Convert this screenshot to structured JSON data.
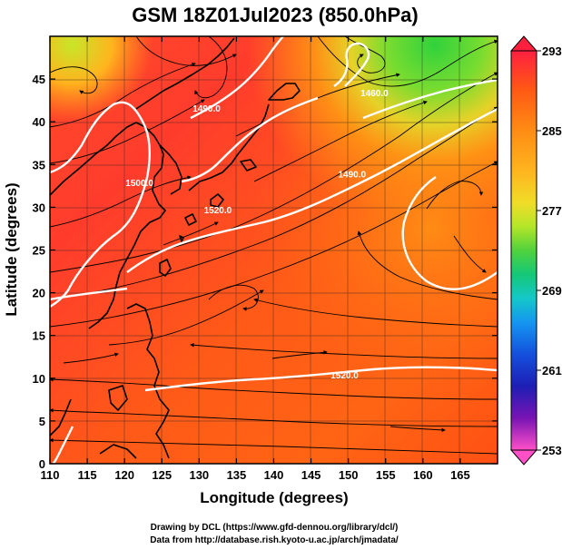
{
  "title": "GSM 18Z01Jul2023 (850.0hPa)",
  "map": {
    "x_axis": {
      "label": "Longitude (degrees)",
      "range": [
        110,
        170
      ],
      "ticks": [
        "110",
        "115",
        "120",
        "125",
        "130",
        "135",
        "140",
        "145",
        "150",
        "155",
        "160",
        "165"
      ],
      "tick_values": [
        110,
        115,
        120,
        125,
        130,
        135,
        140,
        145,
        150,
        155,
        160,
        165
      ]
    },
    "y_axis": {
      "label": "Latitude  (degrees)",
      "range": [
        0,
        50
      ],
      "ticks": [
        "0",
        "5",
        "10",
        "15",
        "20",
        "25",
        "30",
        "35",
        "40",
        "45"
      ],
      "tick_values": [
        0,
        5,
        10,
        15,
        20,
        25,
        30,
        35,
        40,
        45
      ]
    },
    "contour_labels": [
      {
        "text": "1520.0",
        "lon": 132.5,
        "lat": 29.3
      },
      {
        "text": "1520.0",
        "lon": 149.5,
        "lat": 10.0
      },
      {
        "text": "1490.0",
        "lon": 150.5,
        "lat": 33.5
      },
      {
        "text": "1460.0",
        "lon": 153.5,
        "lat": 43.0
      },
      {
        "text": "1500.0",
        "lon": 122.0,
        "lat": 32.5
      },
      {
        "text": "1490.0",
        "lon": 131.0,
        "lat": 41.2
      }
    ]
  },
  "colorbar": {
    "labels": [
      "293",
      "285",
      "277",
      "269",
      "261",
      "253"
    ],
    "values": [
      293,
      285,
      277,
      269,
      261,
      253
    ],
    "colors": [
      "#ff2040",
      "#ff5a14",
      "#ff8c14",
      "#ffb41e",
      "#f0dc28",
      "#b4e628",
      "#50d23c",
      "#14c878",
      "#14c8c8",
      "#1496f0",
      "#1450dc",
      "#1e1eb4",
      "#7814b4",
      "#c814b4",
      "#ff50c8"
    ]
  },
  "credits": {
    "line1": "Drawing by DCL (https://www.gfd-dennou.org/library/dcl/)",
    "line2": "Data from http://database.rish.kyoto-u.ac.jp/arch/jmadata/"
  }
}
